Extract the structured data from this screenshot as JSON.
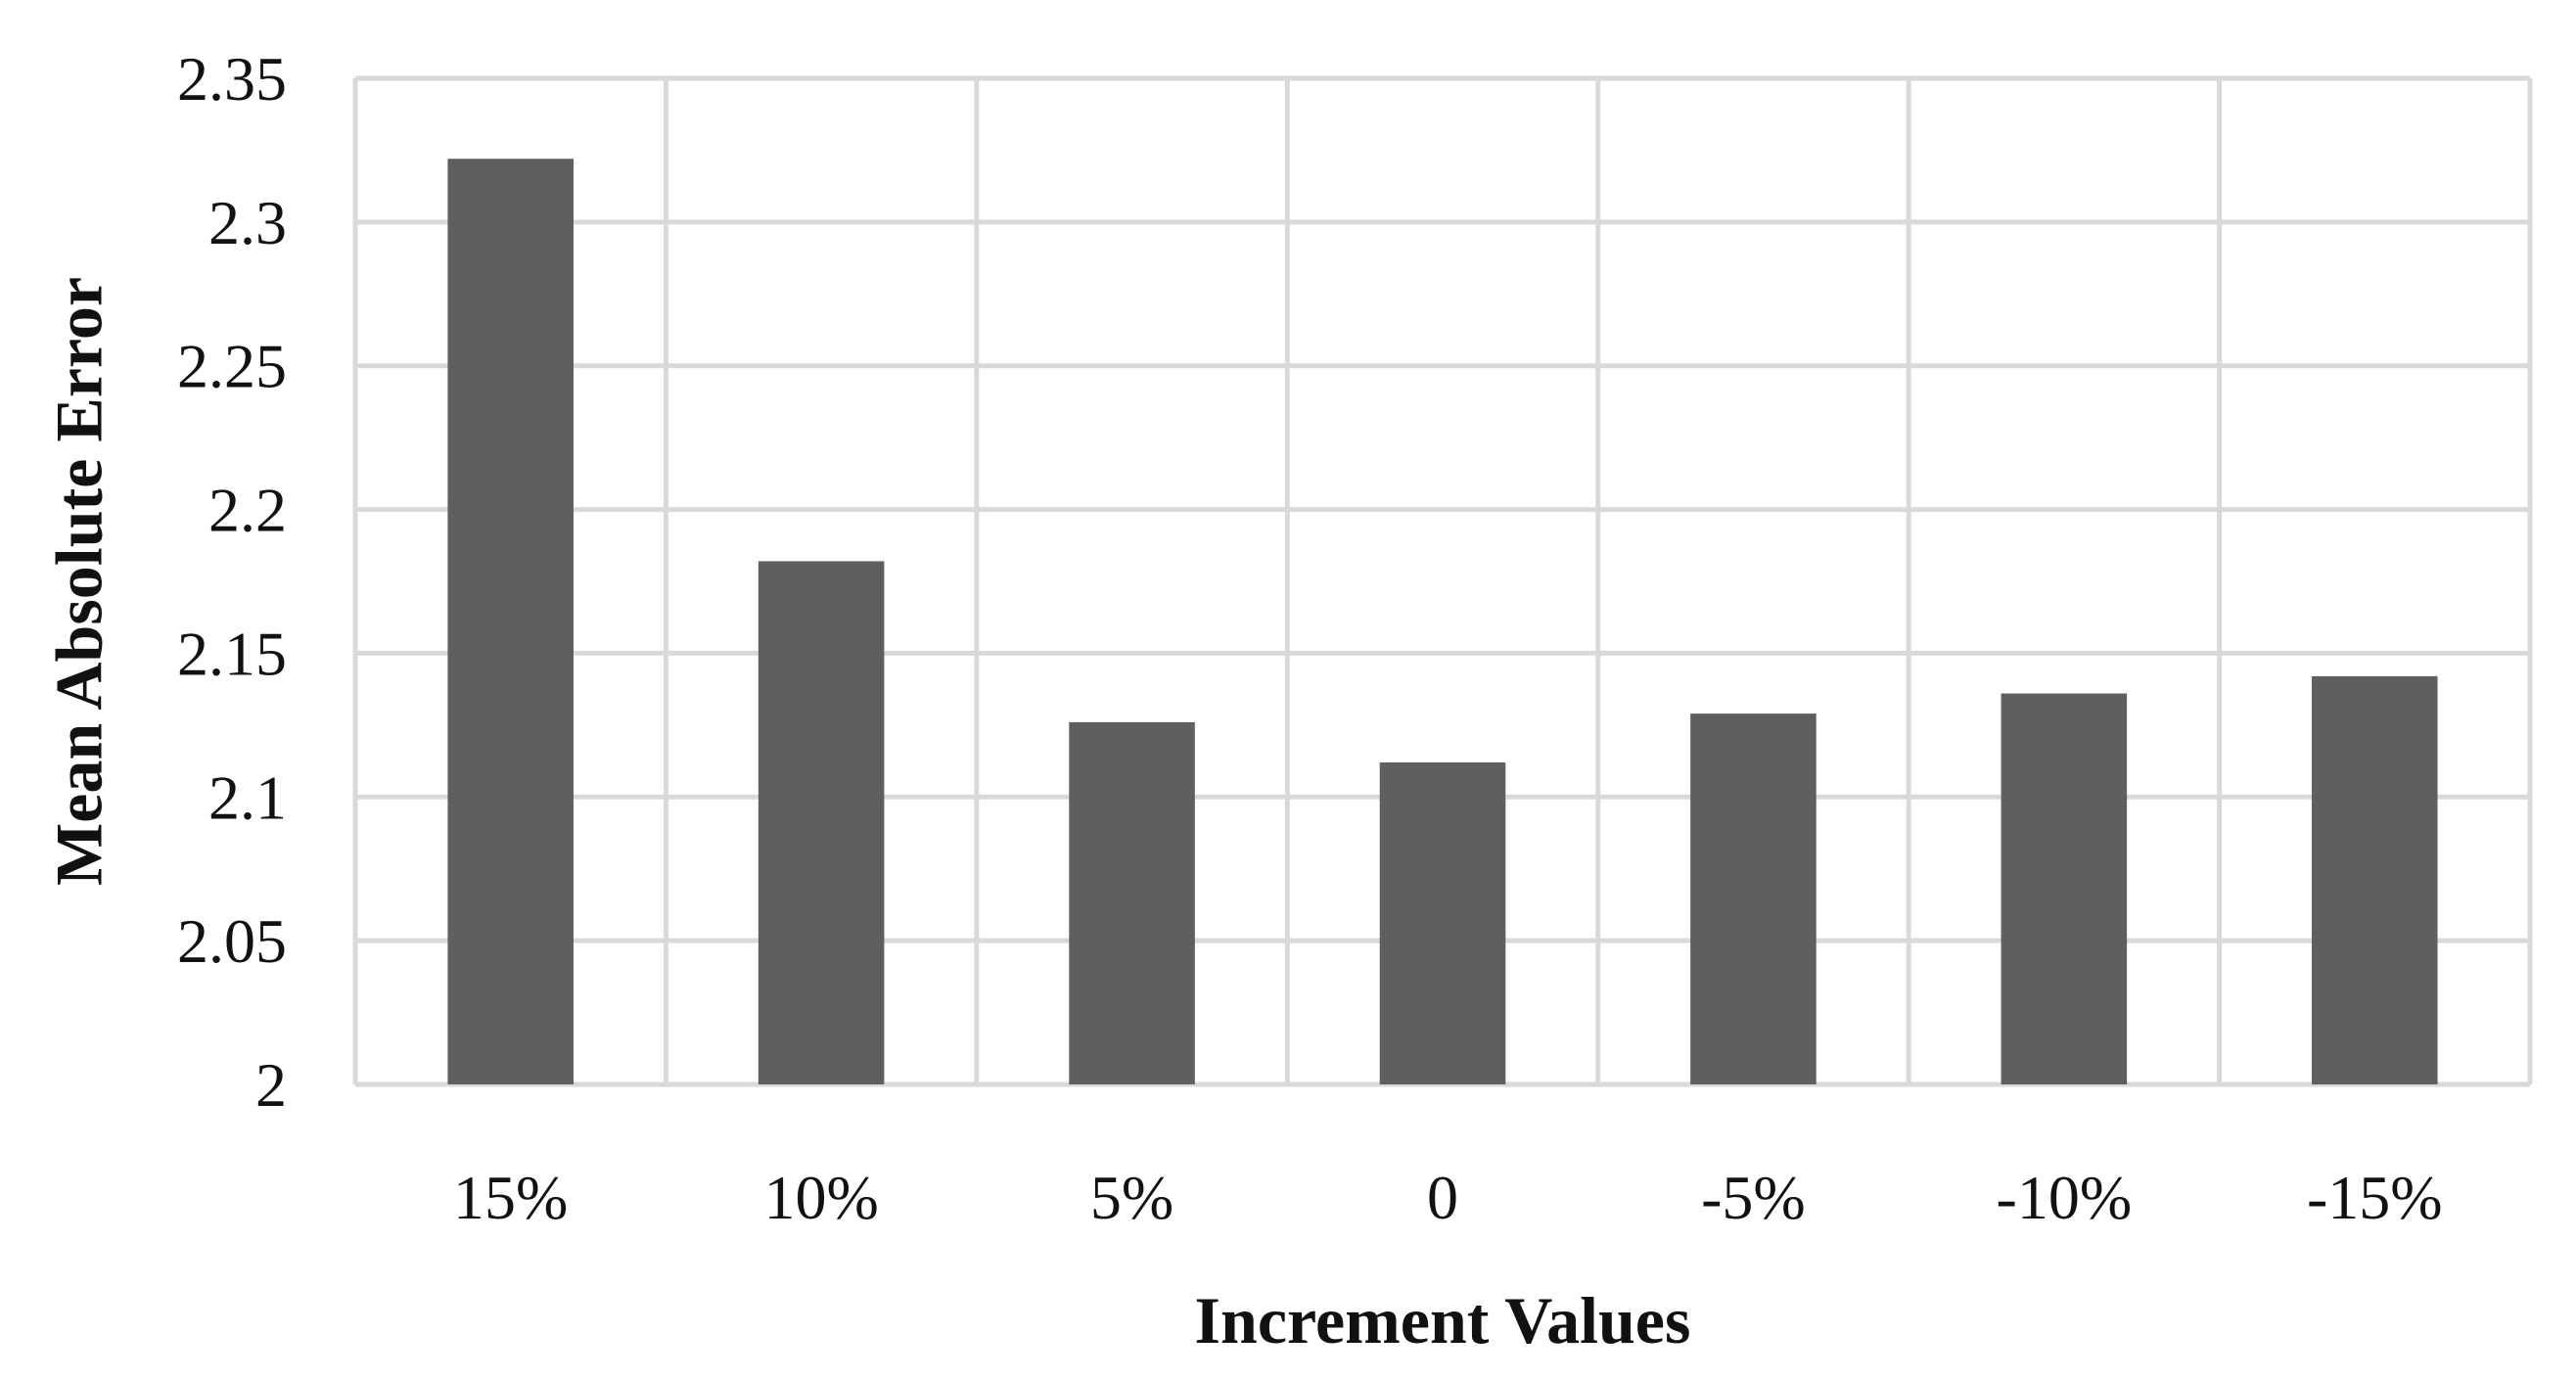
{
  "chart_data": {
    "type": "bar",
    "title": "",
    "xlabel": "Increment Values",
    "ylabel": "Mean Absolute Error",
    "categories": [
      "15%",
      "10%",
      "5%",
      "0",
      "-5%",
      "-10%",
      "-15%"
    ],
    "series": [
      {
        "values": [
          2.322,
          2.182,
          2.126,
          2.112,
          2.129,
          2.136,
          2.142
        ]
      }
    ],
    "ylim": [
      2,
      2.35
    ],
    "yticks": [
      "2",
      "2.05",
      "2.1",
      "2.15",
      "2.2",
      "2.25",
      "2.3",
      "2.35"
    ],
    "grid": true,
    "legend": "none",
    "colors": {
      "bar": "#5f5f5f",
      "grid": "#d9d9d9",
      "text": "#111111"
    }
  }
}
